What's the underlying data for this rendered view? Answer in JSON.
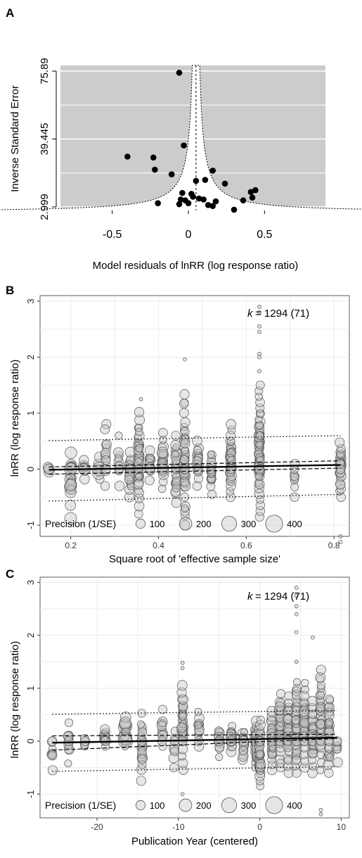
{
  "chart_data": [
    {
      "panel_label": "A",
      "type": "scatter",
      "title": "",
      "xlabel": "Model residuals of lnRR (log response ratio)",
      "ylabel": "Inverse Standard Error",
      "xlim": [
        -0.84,
        0.9
      ],
      "ylim": [
        2.999,
        75.89
      ],
      "x_ticks": [
        -0.5,
        0,
        0.5
      ],
      "x_tick_labels": [
        "-0.5",
        "0",
        "0.5"
      ],
      "y_ticks": [
        2.999,
        39.445,
        75.89
      ],
      "y_tick_labels": [
        "2.999",
        "39.445",
        "75.89"
      ],
      "background": "#cccccc",
      "funnel_center": 0.05,
      "points": [
        {
          "x": -0.06,
          "y": 75.0
        },
        {
          "x": -0.03,
          "y": 36.0
        },
        {
          "x": -0.4,
          "y": 30.0
        },
        {
          "x": -0.23,
          "y": 29.5
        },
        {
          "x": -0.22,
          "y": 23.0
        },
        {
          "x": -0.11,
          "y": 20.5
        },
        {
          "x": 0.16,
          "y": 22.5
        },
        {
          "x": 0.11,
          "y": 17.5
        },
        {
          "x": 0.05,
          "y": 17.0
        },
        {
          "x": 0.24,
          "y": 15.5
        },
        {
          "x": 0.44,
          "y": 12.0
        },
        {
          "x": 0.41,
          "y": 11.0
        },
        {
          "x": 0.42,
          "y": 8.0
        },
        {
          "x": 0.36,
          "y": 6.5
        },
        {
          "x": -0.04,
          "y": 10.5
        },
        {
          "x": 0.02,
          "y": 10.0
        },
        {
          "x": 0.03,
          "y": 8.5
        },
        {
          "x": -0.05,
          "y": 7.0
        },
        {
          "x": -0.02,
          "y": 6.5
        },
        {
          "x": 0.07,
          "y": 7.5
        },
        {
          "x": 0.1,
          "y": 7.0
        },
        {
          "x": -0.2,
          "y": 5.0
        },
        {
          "x": -0.06,
          "y": 4.5
        },
        {
          "x": 0.0,
          "y": 5.0
        },
        {
          "x": 0.13,
          "y": 4.0
        },
        {
          "x": 0.16,
          "y": 3.5
        },
        {
          "x": 0.18,
          "y": 6.0
        },
        {
          "x": 0.3,
          "y": 1.5
        }
      ]
    },
    {
      "panel_label": "B",
      "type": "scatter",
      "title": "",
      "xlabel": "Square root of 'effective sample size'",
      "ylabel": "lnRR (log response ratio)",
      "xlim": [
        0.13,
        0.835
      ],
      "ylim": [
        -1.2,
        3.1
      ],
      "x_ticks": [
        0.2,
        0.4,
        0.6,
        0.8
      ],
      "x_tick_labels": [
        "0.2",
        "0.4",
        "0.6",
        "0.8"
      ],
      "y_ticks": [
        -1,
        0,
        1,
        2,
        3
      ],
      "y_tick_labels": [
        "-1",
        "0",
        "1",
        "2",
        "3"
      ],
      "annotation": {
        "k_symbol": "k",
        "text": "= 1294 (71)"
      },
      "legend": {
        "title": "Precision (1/SE)",
        "entries": [
          "100",
          "200",
          "300",
          "400"
        ],
        "sizes": [
          100,
          200,
          300,
          400
        ],
        "placement": "bottom-left"
      },
      "regression": {
        "intercept": -0.03,
        "slope": 0.13
      },
      "ci_lower": {
        "x": [
          0.15,
          0.815
        ],
        "y": [
          -0.09,
          0.02
        ]
      },
      "ci_upper": {
        "x": [
          0.15,
          0.815
        ],
        "y": [
          0.04,
          0.15
        ]
      },
      "pi_lower": {
        "x": [
          0.15,
          0.815
        ],
        "y": [
          -0.57,
          -0.45
        ]
      },
      "pi_upper": {
        "x": [
          0.15,
          0.815
        ],
        "y": [
          0.51,
          0.6
        ]
      },
      "columns": [
        {
          "x": 0.15,
          "lo": -0.05,
          "hi": 0.1,
          "n": 3,
          "p": 150
        },
        {
          "x": 0.2,
          "lo": -0.88,
          "hi": 0.45,
          "n": 18,
          "p": 230
        },
        {
          "x": 0.23,
          "lo": -0.18,
          "hi": 0.22,
          "n": 8,
          "p": 180
        },
        {
          "x": 0.265,
          "lo": -0.18,
          "hi": 0.22,
          "n": 7,
          "p": 300
        },
        {
          "x": 0.28,
          "lo": -0.3,
          "hi": 1.05,
          "n": 12,
          "p": 110
        },
        {
          "x": 0.31,
          "lo": -0.3,
          "hi": 0.6,
          "n": 10,
          "p": 110
        },
        {
          "x": 0.335,
          "lo": -0.5,
          "hi": 0.35,
          "n": 20,
          "p": 120
        },
        {
          "x": 0.355,
          "lo": -0.8,
          "hi": 1.02,
          "n": 40,
          "p": 110
        },
        {
          "x": 0.38,
          "lo": -0.2,
          "hi": 0.45,
          "n": 12,
          "p": 140
        },
        {
          "x": 0.41,
          "lo": -0.35,
          "hi": 0.65,
          "n": 25,
          "p": 160
        },
        {
          "x": 0.44,
          "lo": -0.6,
          "hi": 0.6,
          "n": 22,
          "p": 110
        },
        {
          "x": 0.46,
          "lo": -1.0,
          "hi": 1.45,
          "n": 45,
          "p": 110
        },
        {
          "x": 0.49,
          "lo": -0.3,
          "hi": 0.55,
          "n": 20,
          "p": 120
        },
        {
          "x": 0.52,
          "lo": -0.45,
          "hi": 0.35,
          "n": 18,
          "p": 110
        },
        {
          "x": 0.565,
          "lo": -0.5,
          "hi": 0.8,
          "n": 40,
          "p": 110
        },
        {
          "x": 0.63,
          "lo": -0.85,
          "hi": 1.5,
          "n": 70,
          "p": 110
        },
        {
          "x": 0.71,
          "lo": -0.5,
          "hi": 0.2,
          "n": 8,
          "p": 90
        },
        {
          "x": 0.815,
          "lo": -0.5,
          "hi": 0.55,
          "n": 30,
          "p": 110
        }
      ],
      "outliers": [
        {
          "x": 0.46,
          "y": 1.96
        },
        {
          "x": 0.36,
          "y": 1.25
        },
        {
          "x": 0.63,
          "y": 2.9
        },
        {
          "x": 0.63,
          "y": 2.8
        },
        {
          "x": 0.63,
          "y": 2.55
        },
        {
          "x": 0.63,
          "y": 2.45
        },
        {
          "x": 0.63,
          "y": 2.06
        },
        {
          "x": 0.63,
          "y": 2.0
        },
        {
          "x": 0.63,
          "y": 1.75
        },
        {
          "x": 0.815,
          "y": -1.2
        },
        {
          "x": 0.815,
          "y": -1.3
        }
      ]
    },
    {
      "panel_label": "C",
      "type": "scatter",
      "title": "",
      "xlabel": "Publication Year (centered)",
      "ylabel": "lnRR (log response ratio)",
      "xlim": [
        -27,
        11
      ],
      "ylim": [
        -1.45,
        3.1
      ],
      "x_ticks": [
        -20,
        -10,
        0,
        10
      ],
      "x_tick_labels": [
        "-20",
        "-10",
        "0",
        "10"
      ],
      "y_ticks": [
        -1,
        0,
        1,
        2,
        3
      ],
      "y_tick_labels": [
        "-1",
        "0",
        "1",
        "2",
        "3"
      ],
      "annotation": {
        "k_symbol": "k",
        "text": "= 1294 (71)"
      },
      "legend": {
        "title": "Precision (1/SE)",
        "entries": [
          "100",
          "200",
          "300",
          "400"
        ],
        "sizes": [
          100,
          200,
          300,
          400
        ],
        "placement": "bottom-left"
      },
      "regression": {
        "intercept": 0.04,
        "slope": 0.0027
      },
      "ci_lower": {
        "x": [
          -25.5,
          9.5
        ],
        "y": [
          -0.17,
          0.05
        ]
      },
      "ci_upper": {
        "x": [
          -25.5,
          9.5
        ],
        "y": [
          0.1,
          0.13
        ]
      },
      "pi_lower": {
        "x": [
          -25.5,
          9.5
        ],
        "y": [
          -0.57,
          -0.48
        ]
      },
      "pi_upper": {
        "x": [
          -25.5,
          9.5
        ],
        "y": [
          0.51,
          0.58
        ]
      },
      "columns": [
        {
          "x": -25.5,
          "lo": -0.55,
          "hi": 0.08,
          "n": 8,
          "p": 110
        },
        {
          "x": -23.5,
          "lo": -0.42,
          "hi": 0.35,
          "n": 10,
          "p": 110
        },
        {
          "x": -21.5,
          "lo": -0.1,
          "hi": 0.1,
          "n": 5,
          "p": 110
        },
        {
          "x": -19,
          "lo": -0.1,
          "hi": 0.3,
          "n": 12,
          "p": 110
        },
        {
          "x": -16.5,
          "lo": -0.1,
          "hi": 0.5,
          "n": 14,
          "p": 300
        },
        {
          "x": -14.5,
          "lo": -0.75,
          "hi": 0.6,
          "n": 20,
          "p": 110
        },
        {
          "x": -12,
          "lo": -0.1,
          "hi": 0.6,
          "n": 10,
          "p": 110
        },
        {
          "x": -10.5,
          "lo": -0.5,
          "hi": 0.3,
          "n": 8,
          "p": 110
        },
        {
          "x": -9.5,
          "lo": -0.55,
          "hi": 1.1,
          "n": 38,
          "p": 110
        },
        {
          "x": -7.5,
          "lo": -0.1,
          "hi": 0.7,
          "n": 12,
          "p": 110
        },
        {
          "x": -5,
          "lo": -0.3,
          "hi": 0.3,
          "n": 12,
          "p": 110
        },
        {
          "x": -3.5,
          "lo": -0.2,
          "hi": 0.35,
          "n": 18,
          "p": 110
        },
        {
          "x": -2,
          "lo": -0.35,
          "hi": 0.2,
          "n": 20,
          "p": 140
        },
        {
          "x": -0.5,
          "lo": -0.5,
          "hi": 0.45,
          "n": 30,
          "p": 110
        },
        {
          "x": 0,
          "lo": -0.85,
          "hi": 0.4,
          "n": 40,
          "p": 110
        },
        {
          "x": 1.5,
          "lo": -0.55,
          "hi": 0.6,
          "n": 35,
          "p": 110
        },
        {
          "x": 2.5,
          "lo": -0.5,
          "hi": 1.0,
          "n": 30,
          "p": 110
        },
        {
          "x": 3.5,
          "lo": -0.6,
          "hi": 0.9,
          "n": 35,
          "p": 110
        },
        {
          "x": 4.5,
          "lo": -0.6,
          "hi": 1.2,
          "n": 45,
          "p": 110
        },
        {
          "x": 5.5,
          "lo": -0.5,
          "hi": 1.1,
          "n": 40,
          "p": 110
        },
        {
          "x": 6.5,
          "lo": -0.6,
          "hi": 0.8,
          "n": 35,
          "p": 110
        },
        {
          "x": 7.5,
          "lo": -0.55,
          "hi": 1.35,
          "n": 40,
          "p": 110
        },
        {
          "x": 8.5,
          "lo": -0.6,
          "hi": 0.9,
          "n": 30,
          "p": 110
        },
        {
          "x": 9.5,
          "lo": -0.4,
          "hi": 0.1,
          "n": 6,
          "p": 110
        }
      ],
      "outliers": [
        {
          "x": -9.5,
          "y": 1.48
        },
        {
          "x": -9.5,
          "y": 1.38
        },
        {
          "x": 4.5,
          "y": 2.9
        },
        {
          "x": 4.5,
          "y": 2.75
        },
        {
          "x": 4.5,
          "y": 2.55
        },
        {
          "x": 4.5,
          "y": 2.4
        },
        {
          "x": 4.5,
          "y": 2.06
        },
        {
          "x": 4.5,
          "y": 1.5
        },
        {
          "x": 6.5,
          "y": 1.96
        },
        {
          "x": 7.5,
          "y": -1.3
        },
        {
          "x": 7.5,
          "y": -1.38
        },
        {
          "x": -9.5,
          "y": -1.0
        }
      ]
    }
  ]
}
